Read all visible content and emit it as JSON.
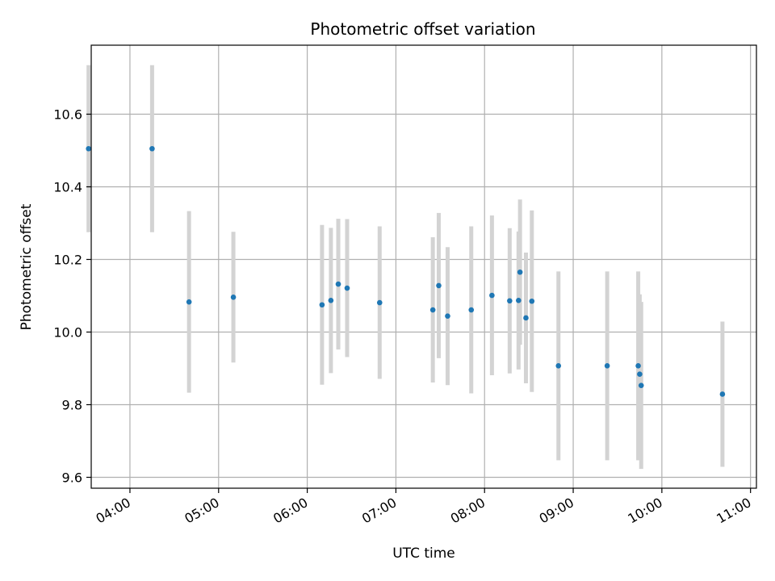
{
  "chart_data": {
    "type": "scatter",
    "title": "Photometric offset variation",
    "xlabel": "UTC time",
    "ylabel": "Photometric offset",
    "x_ticks": [
      "04:00",
      "05:00",
      "06:00",
      "07:00",
      "08:00",
      "09:00",
      "10:00",
      "11:00"
    ],
    "y_ticks": [
      "9.6",
      "9.8",
      "10.0",
      "10.2",
      "10.4",
      "10.6"
    ],
    "xlim": [
      "03:35",
      "11:02"
    ],
    "ylim": [
      9.57,
      10.79
    ],
    "grid": true,
    "colors": {
      "point": "#1f77b4",
      "errorbar": "#d3d3d3",
      "grid": "#b0b0b0"
    },
    "points": [
      {
        "x": "03:32",
        "y": 10.505,
        "err": 0.23
      },
      {
        "x": "04:15",
        "y": 10.505,
        "err": 0.23
      },
      {
        "x": "04:40",
        "y": 10.083,
        "err": 0.25
      },
      {
        "x": "05:10",
        "y": 10.096,
        "err": 0.18
      },
      {
        "x": "06:10",
        "y": 10.075,
        "err": 0.22
      },
      {
        "x": "06:16",
        "y": 10.087,
        "err": 0.2
      },
      {
        "x": "06:21",
        "y": 10.132,
        "err": 0.18
      },
      {
        "x": "06:27",
        "y": 10.121,
        "err": 0.19
      },
      {
        "x": "06:49",
        "y": 10.081,
        "err": 0.21
      },
      {
        "x": "07:25",
        "y": 10.061,
        "err": 0.2
      },
      {
        "x": "07:29",
        "y": 10.128,
        "err": 0.2
      },
      {
        "x": "07:35",
        "y": 10.044,
        "err": 0.19
      },
      {
        "x": "07:51",
        "y": 10.061,
        "err": 0.23
      },
      {
        "x": "08:05",
        "y": 10.101,
        "err": 0.22
      },
      {
        "x": "08:17",
        "y": 10.086,
        "err": 0.2
      },
      {
        "x": "08:23",
        "y": 10.087,
        "err": 0.19
      },
      {
        "x": "08:24",
        "y": 10.165,
        "err": 0.2
      },
      {
        "x": "08:28",
        "y": 10.039,
        "err": 0.18
      },
      {
        "x": "08:32",
        "y": 10.085,
        "err": 0.25
      },
      {
        "x": "08:50",
        "y": 9.907,
        "err": 0.26
      },
      {
        "x": "09:23",
        "y": 9.907,
        "err": 0.26
      },
      {
        "x": "09:44",
        "y": 9.907,
        "err": 0.26
      },
      {
        "x": "09:45",
        "y": 9.884,
        "err": 0.22
      },
      {
        "x": "09:46",
        "y": 9.853,
        "err": 0.23
      },
      {
        "x": "10:41",
        "y": 9.829,
        "err": 0.2
      }
    ]
  }
}
